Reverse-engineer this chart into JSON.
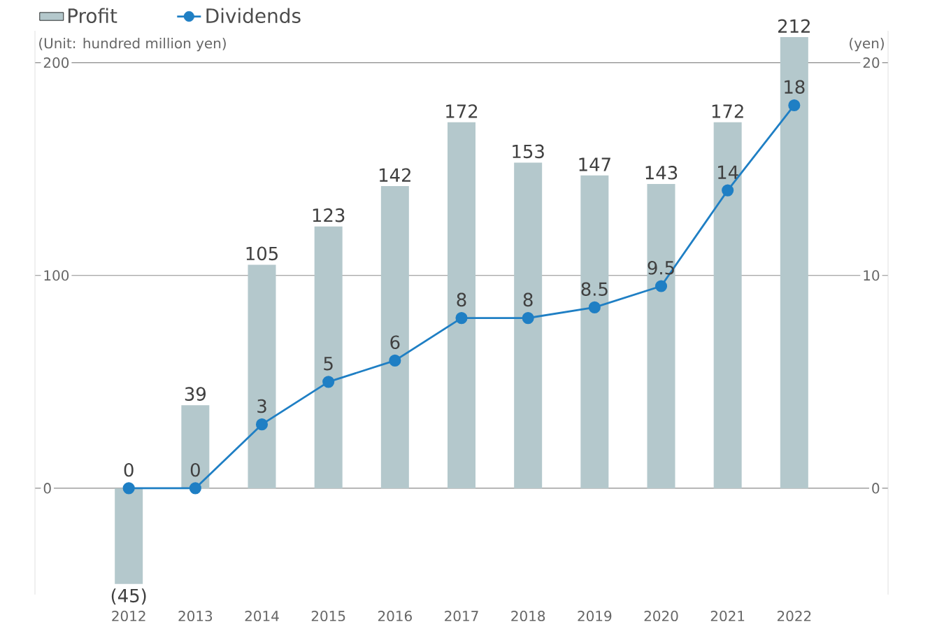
{
  "chart_data": {
    "type": "bar",
    "categories": [
      "2012",
      "2013",
      "2014",
      "2015",
      "2016",
      "2017",
      "2018",
      "2019",
      "2020",
      "2021",
      "2022"
    ],
    "series": [
      {
        "name": "Profit",
        "color": "#b4c8cc",
        "values": [
          -45,
          39,
          105,
          123,
          142,
          172,
          153,
          147,
          143,
          172,
          212
        ],
        "value_labels": [
          "(45)",
          "39",
          "105",
          "123",
          "142",
          "172",
          "153",
          "147",
          "143",
          "172",
          "212"
        ]
      },
      {
        "name": "Dividends",
        "type": "line",
        "axis": "y2",
        "color": "#1f7fc4",
        "marker": "circle",
        "values": [
          0,
          0,
          3,
          5,
          6,
          8,
          8,
          8.5,
          9.5,
          14,
          18
        ],
        "value_labels": [
          "0",
          "0",
          "3",
          "5",
          "6",
          "8",
          "8",
          "8.5",
          "9.5",
          "14",
          "18"
        ]
      }
    ],
    "ylabel": "(Unit: hundred million yen)",
    "y2label": "(yen)",
    "ylim": [
      -50,
      215
    ],
    "yticks": [
      0,
      100,
      200
    ],
    "y2lim": [
      -5,
      21.5
    ],
    "y2ticks": [
      0,
      10,
      20
    ],
    "grid": "y",
    "legend": "top left"
  }
}
